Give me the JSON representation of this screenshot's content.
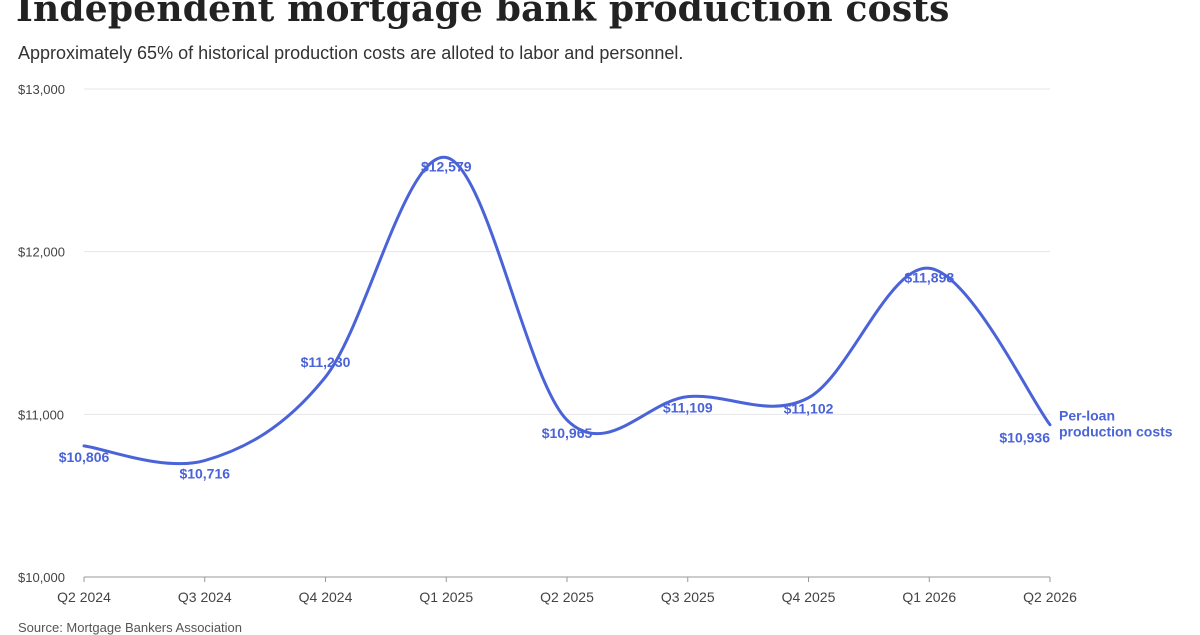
{
  "header": {
    "title": "Independent mortgage bank production costs",
    "subtitle": "Approximately 65% of historical production costs are alloted to labor and personnel."
  },
  "footer": {
    "source": "Source: Mortgage Bankers Association"
  },
  "chart_data": {
    "type": "line",
    "title": "Independent mortgage bank production costs",
    "subtitle": "Approximately 65% of historical production costs are alloted to labor and personnel.",
    "xlabel": "",
    "ylabel": "",
    "categories": [
      "Q2 2024",
      "Q3 2024",
      "Q4 2024",
      "Q1 2025",
      "Q2 2025",
      "Q3 2025",
      "Q4 2025",
      "Q1 2026",
      "Q2 2026"
    ],
    "series": [
      {
        "name": "Per-loan production costs",
        "name_lines": [
          "Per-loan",
          "production costs"
        ],
        "values": [
          10806,
          10716,
          11230,
          12579,
          10965,
          11109,
          11102,
          11898,
          10936
        ],
        "labels": [
          "$10,806",
          "$10,716",
          "$11,230",
          "$12,579",
          "$10,965",
          "$11,109",
          "$11,102",
          "$11,898",
          "$10,936"
        ],
        "color": "#4a63d8"
      }
    ],
    "ylim": [
      10000,
      13000
    ],
    "yticks": [
      10000,
      11000,
      12000,
      13000
    ],
    "ytick_labels": [
      "$10,000",
      "$11,000",
      "$12,000",
      "$13,000"
    ],
    "grid": true,
    "gridline_color": "#e6e6e6"
  }
}
